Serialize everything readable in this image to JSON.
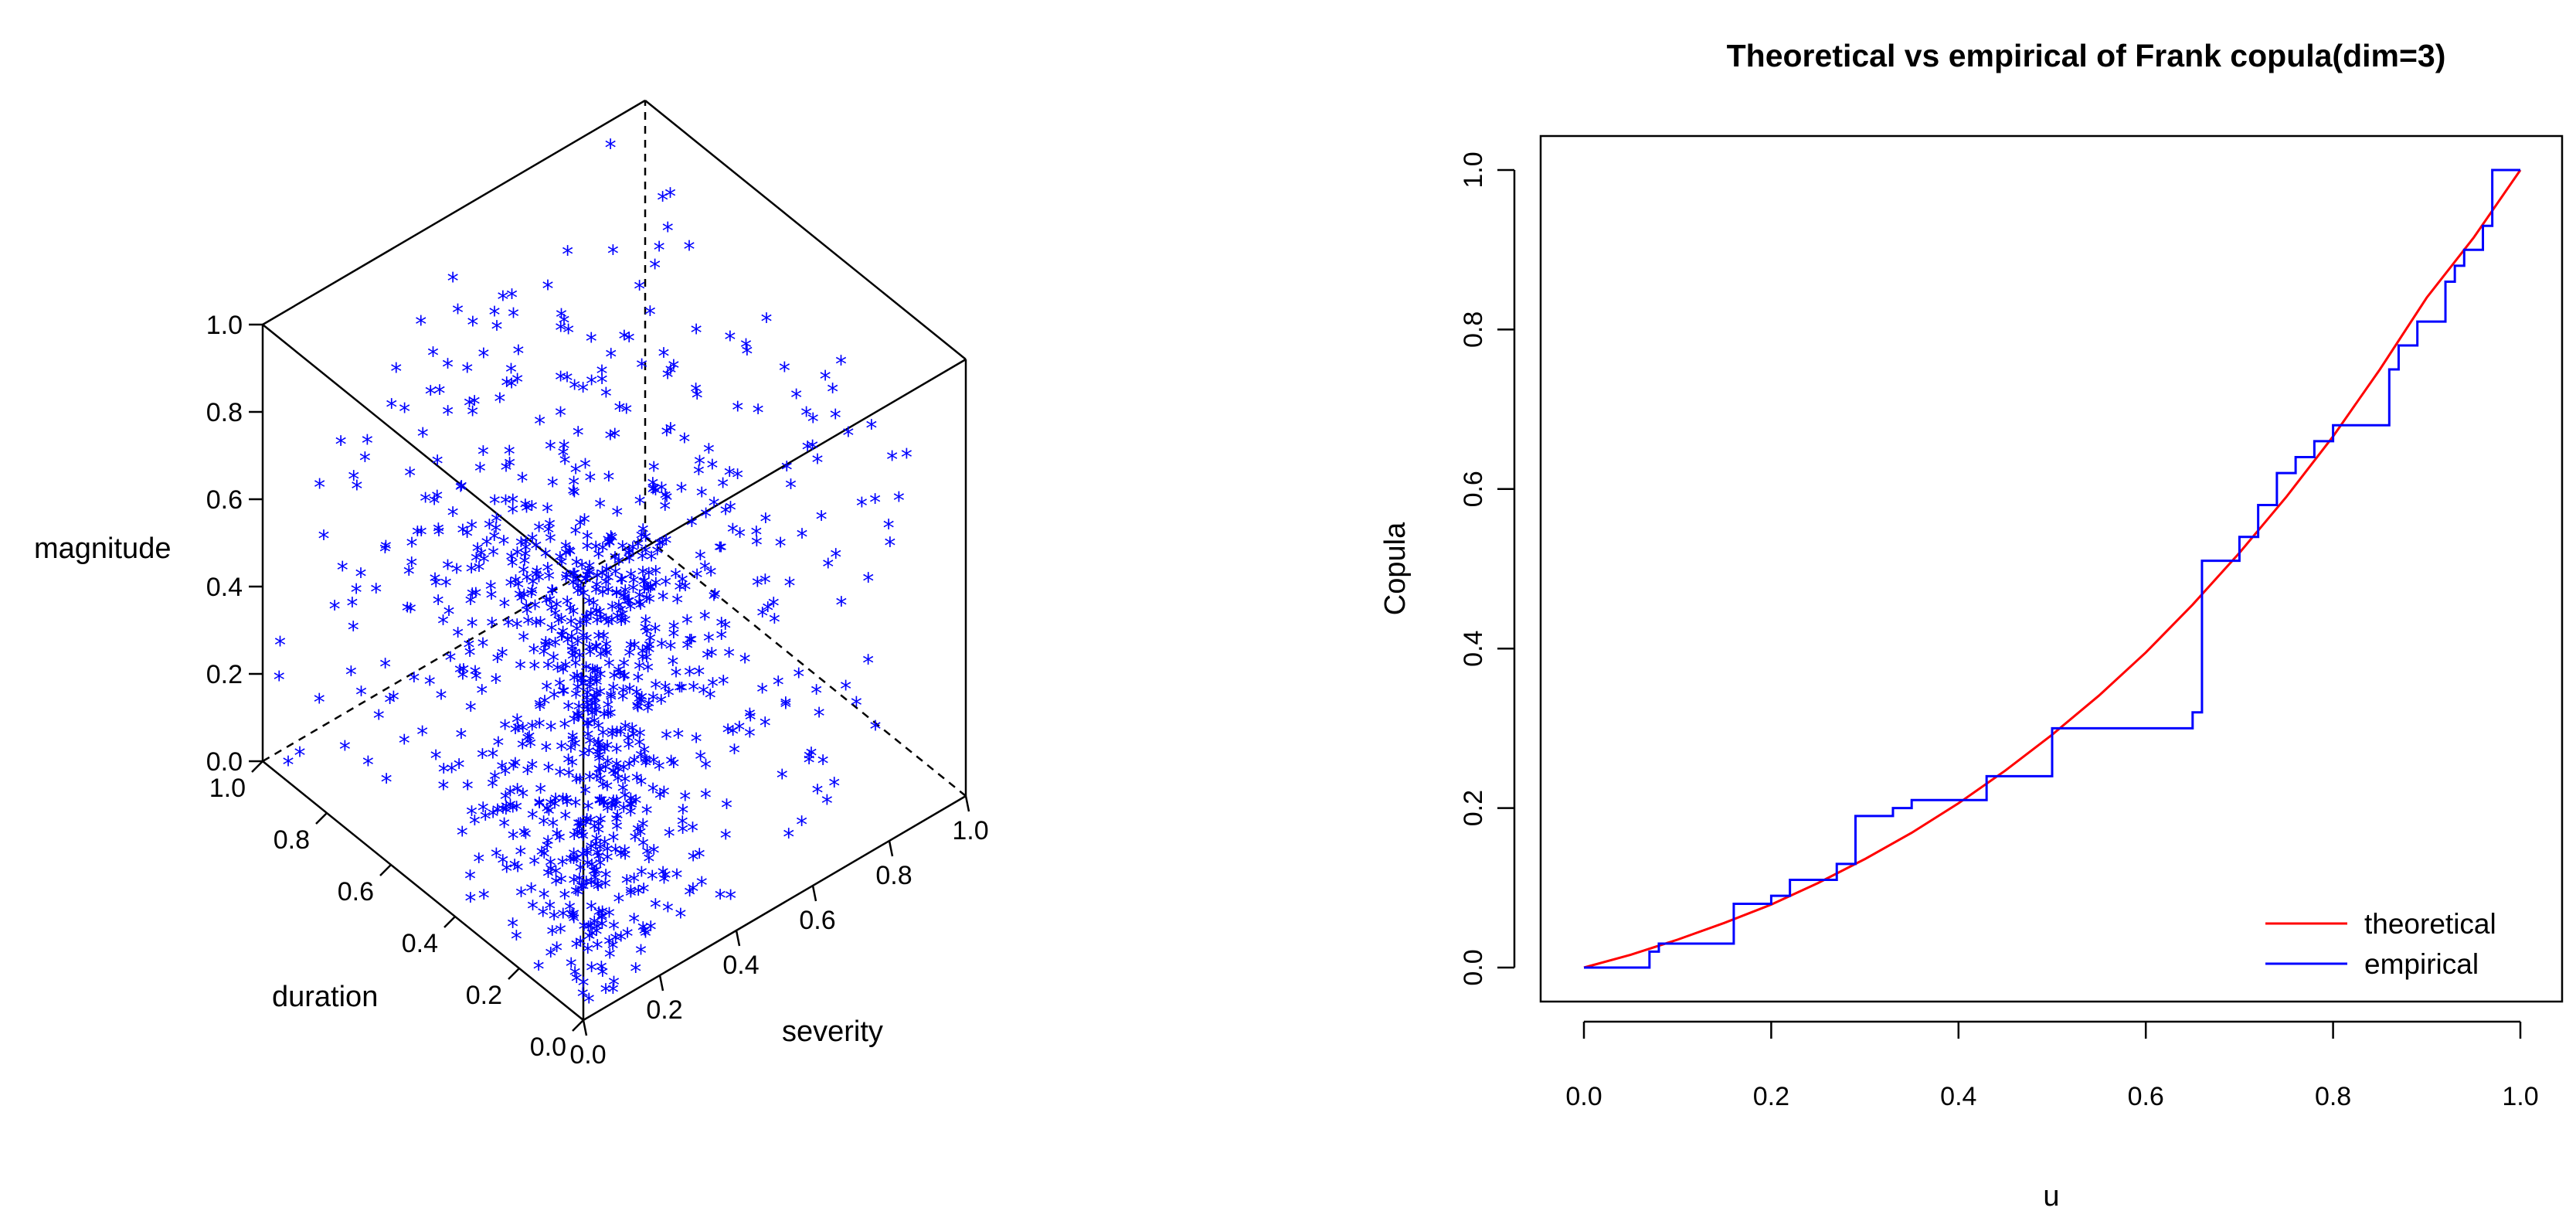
{
  "chart_data": [
    {
      "type": "scatter",
      "subtype": "scatter3d",
      "title": "",
      "xlabel": "duration",
      "ylabel": "severity",
      "zlabel": "magnitude",
      "xlim": [
        0,
        1
      ],
      "ylim": [
        0,
        1
      ],
      "zlim": [
        0,
        1
      ],
      "x_ticks": [
        "0.0",
        "0.2",
        "0.4",
        "0.6",
        "0.8",
        "1.0"
      ],
      "y_ticks": [
        "0.0",
        "0.2",
        "0.4",
        "0.6",
        "0.8",
        "1.0"
      ],
      "z_ticks": [
        "0.0",
        "0.2",
        "0.4",
        "0.6",
        "0.8",
        "1.0"
      ],
      "marker": "*",
      "color": "#0000ff",
      "point_count": 1000,
      "sample_seed": 20240617
    },
    {
      "type": "line",
      "title": "Theoretical vs empirical of Frank copula(dim=3)",
      "xlabel": "u",
      "ylabel": "Copula",
      "xlim": [
        0,
        1
      ],
      "ylim": [
        0,
        1
      ],
      "x_ticks": [
        "0.0",
        "0.2",
        "0.4",
        "0.6",
        "0.8",
        "1.0"
      ],
      "y_ticks": [
        "0.0",
        "0.2",
        "0.4",
        "0.6",
        "0.8",
        "1.0"
      ],
      "legend_position": "bottom-right",
      "series": [
        {
          "name": "theoretical",
          "color": "#ff0000",
          "kind": "line",
          "x": [
            0,
            0.05,
            0.1,
            0.15,
            0.2,
            0.25,
            0.3,
            0.35,
            0.4,
            0.45,
            0.5,
            0.55,
            0.6,
            0.65,
            0.7,
            0.75,
            0.8,
            0.85,
            0.9,
            0.95,
            1.0
          ],
          "y": [
            0,
            0.016,
            0.035,
            0.056,
            0.079,
            0.106,
            0.136,
            0.169,
            0.206,
            0.247,
            0.292,
            0.341,
            0.395,
            0.455,
            0.52,
            0.59,
            0.666,
            0.75,
            0.84,
            0.915,
            1.0
          ]
        },
        {
          "name": "empirical",
          "color": "#0000ff",
          "kind": "step",
          "x": [
            0,
            0.07,
            0.08,
            0.16,
            0.17,
            0.2,
            0.22,
            0.25,
            0.27,
            0.29,
            0.33,
            0.35,
            0.4,
            0.43,
            0.45,
            0.48,
            0.5,
            0.63,
            0.65,
            0.66,
            0.68,
            0.7,
            0.72,
            0.74,
            0.76,
            0.78,
            0.8,
            0.82,
            0.86,
            0.87,
            0.89,
            0.92,
            0.93,
            0.94,
            0.96,
            0.97,
            1.0
          ],
          "y": [
            0,
            0.02,
            0.03,
            0.08,
            0.08,
            0.09,
            0.11,
            0.11,
            0.13,
            0.19,
            0.2,
            0.21,
            0.21,
            0.24,
            0.24,
            0.24,
            0.3,
            0.3,
            0.32,
            0.51,
            0.51,
            0.54,
            0.58,
            0.62,
            0.64,
            0.66,
            0.68,
            0.68,
            0.75,
            0.78,
            0.81,
            0.86,
            0.88,
            0.9,
            0.93,
            1.0,
            1.0
          ]
        }
      ]
    }
  ]
}
